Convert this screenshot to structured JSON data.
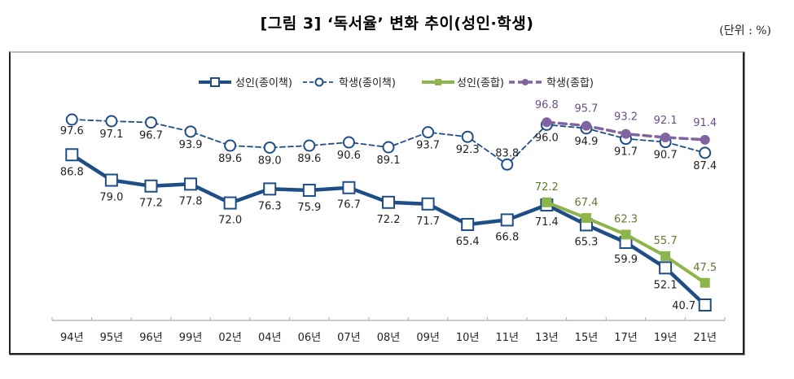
{
  "title": "[그림 3] ‘독서율’ 변화 추이(성인·학생)",
  "unit": "(단위 : %)",
  "colors": {
    "adult_paper": "#1f4e87",
    "student_paper": "#1f4e87",
    "adult_total": "#8db54b",
    "student_total": "#8064a2",
    "adult_total_label": "#5f7a2e",
    "student_total_label": "#6a4f8c"
  },
  "chart_data": {
    "type": "line",
    "title": "[그림 3] ‘독서율’ 변화 추이(성인·학생)",
    "xlabel": "",
    "ylabel": "",
    "unit": "%",
    "ylim": [
      35,
      100
    ],
    "grid": false,
    "legend_position": "top",
    "categories": [
      "94년",
      "95년",
      "96년",
      "99년",
      "02년",
      "04년",
      "06년",
      "07년",
      "08년",
      "09년",
      "10년",
      "11년",
      "13년",
      "15년",
      "17년",
      "19년",
      "21년"
    ],
    "series": [
      {
        "name": "성인(종이책)",
        "style": "solid-thick",
        "marker": "square-open",
        "values": [
          86.8,
          79.0,
          77.2,
          77.8,
          72.0,
          76.3,
          75.9,
          76.7,
          72.2,
          71.7,
          65.4,
          66.8,
          71.4,
          65.3,
          59.9,
          52.1,
          40.7
        ]
      },
      {
        "name": "학생(종이책)",
        "style": "dashed",
        "marker": "circle-open",
        "values": [
          97.6,
          97.1,
          96.7,
          93.9,
          89.6,
          89.0,
          89.6,
          90.6,
          89.1,
          93.7,
          92.3,
          83.8,
          96.0,
          94.9,
          91.7,
          90.7,
          87.4
        ]
      },
      {
        "name": "성인(종합)",
        "style": "solid",
        "marker": "square-filled",
        "values": [
          null,
          null,
          null,
          null,
          null,
          null,
          null,
          null,
          null,
          null,
          null,
          null,
          72.2,
          67.4,
          62.3,
          55.7,
          47.5
        ]
      },
      {
        "name": "학생(종합)",
        "style": "dashed-thick",
        "marker": "circle-filled",
        "values": [
          null,
          null,
          null,
          null,
          null,
          null,
          null,
          null,
          null,
          null,
          null,
          null,
          96.8,
          95.7,
          93.2,
          92.1,
          91.4
        ]
      }
    ]
  }
}
